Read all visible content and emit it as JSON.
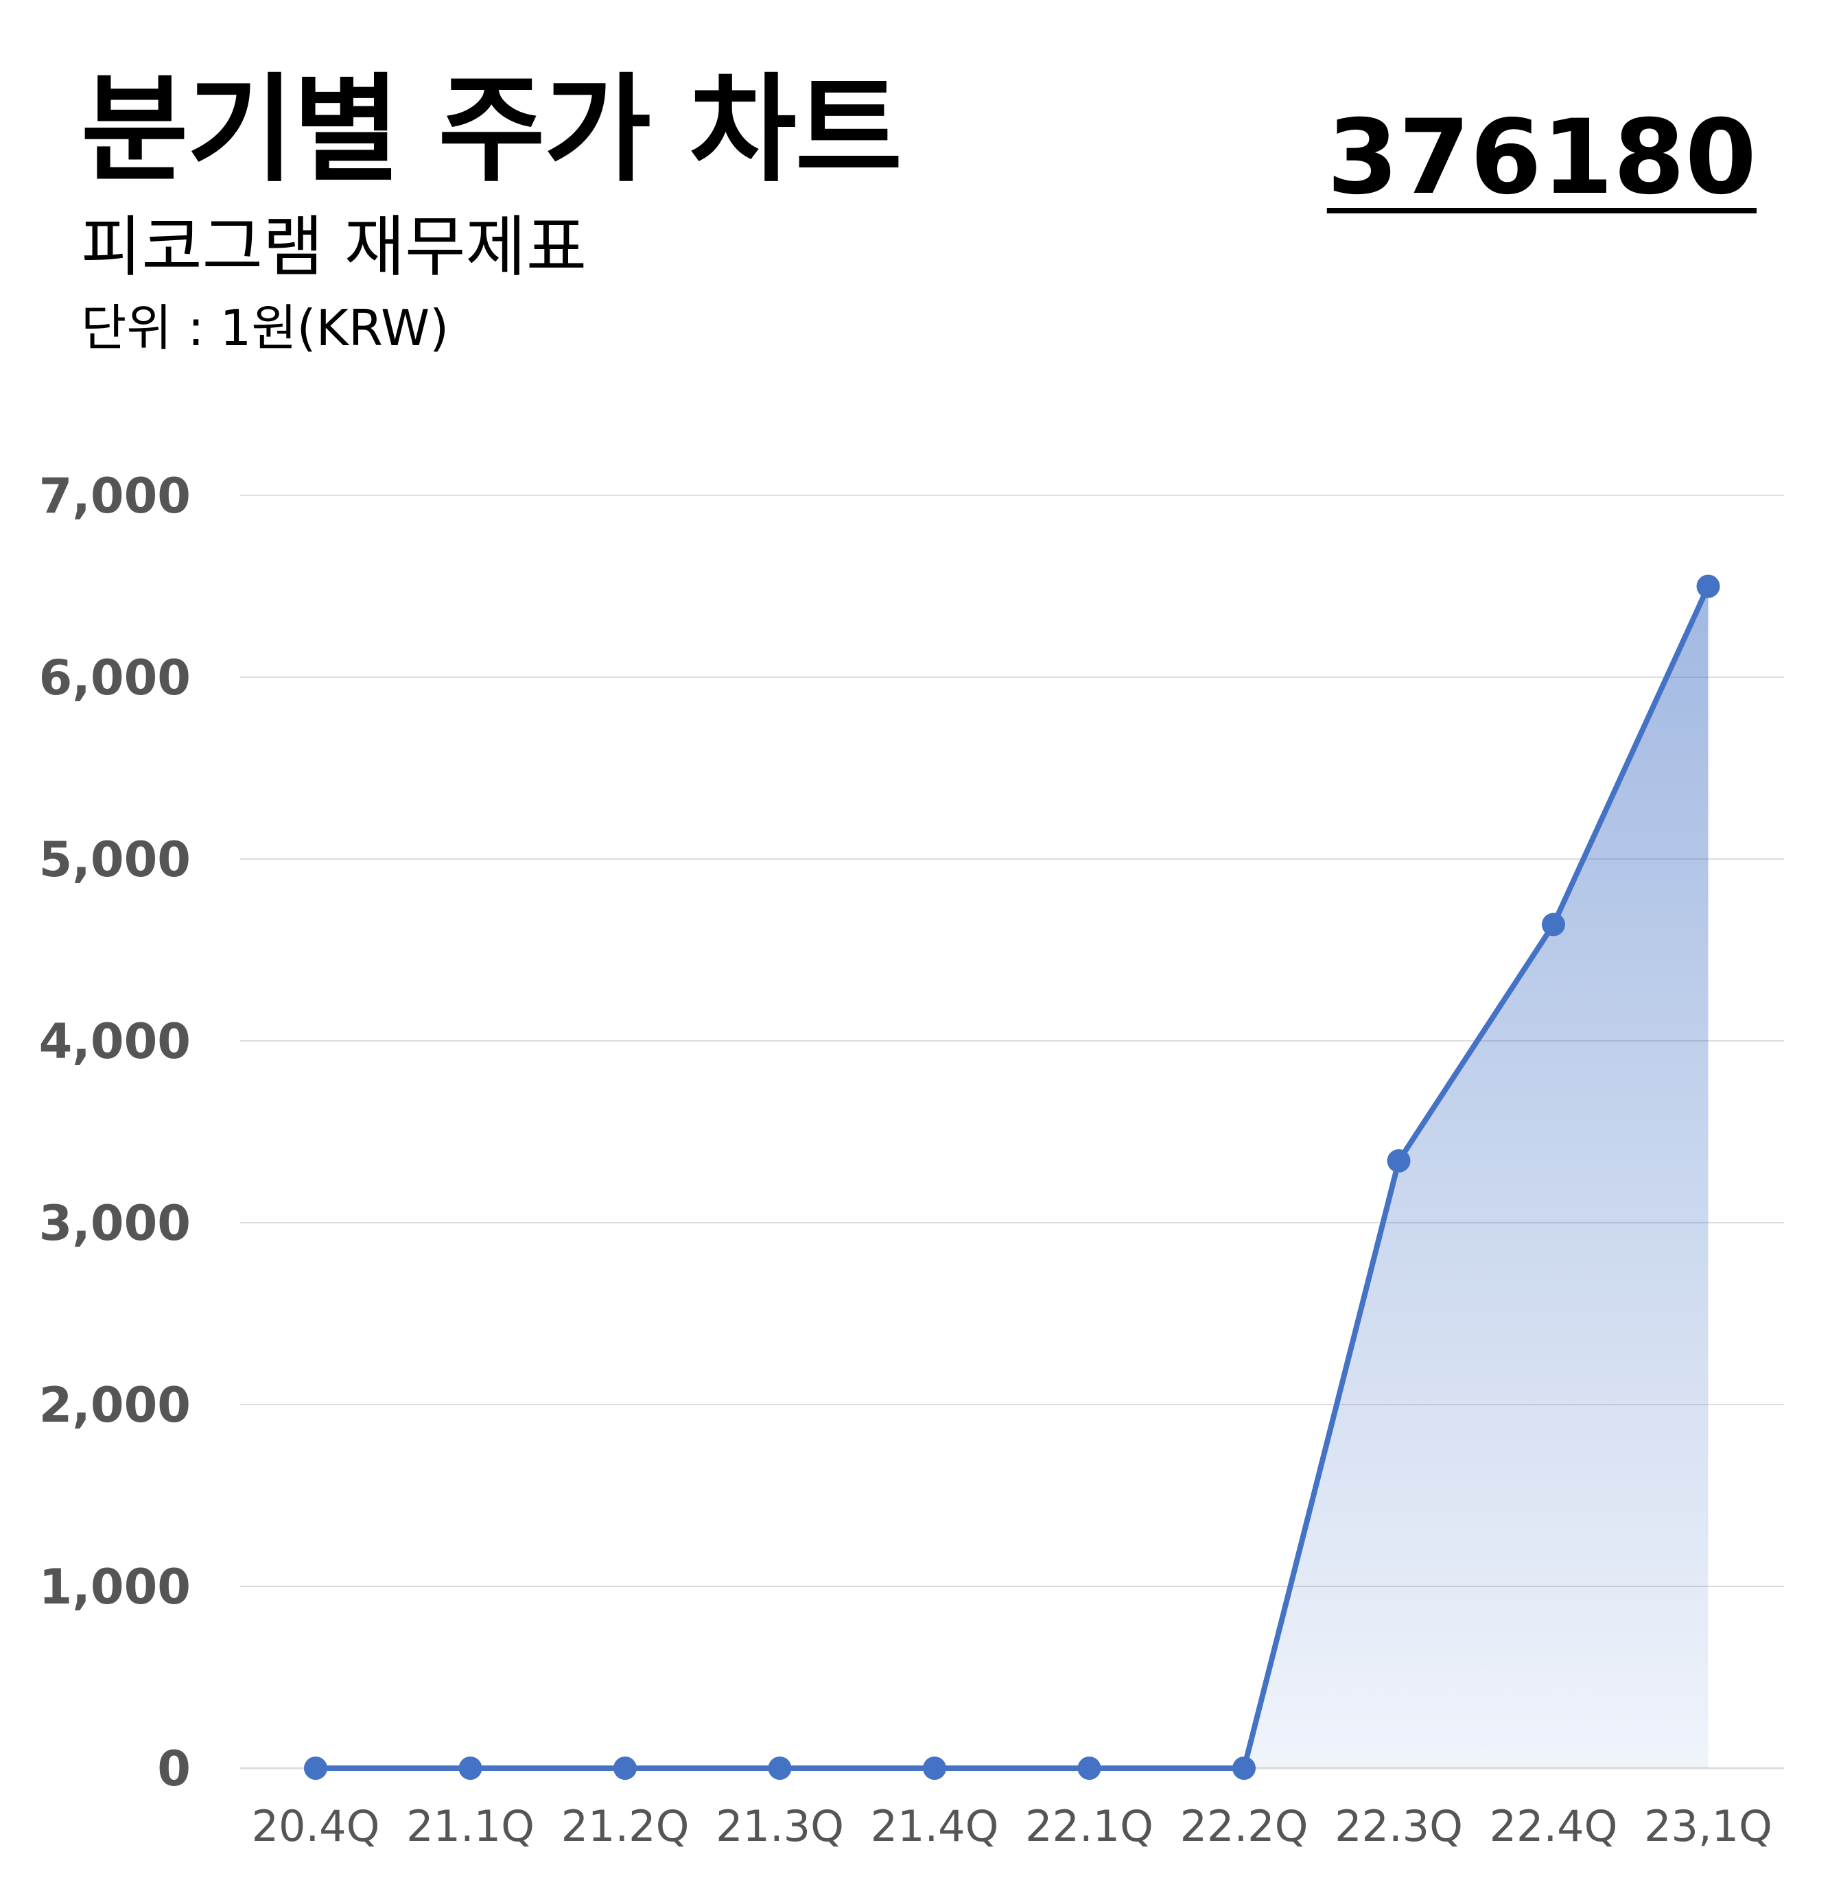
{
  "header": {
    "title": "분기별 주가 차트",
    "subtitle": "피코그램 재무제표",
    "unit": "단위 : 1원(KRW)",
    "code": "376180"
  },
  "colors": {
    "line": "#4472C4",
    "grid": "#DDDDDD",
    "tick_text": "#555555"
  },
  "chart_data": {
    "type": "area",
    "title": "분기별 주가 차트",
    "ylabel": "",
    "xlabel": "",
    "categories": [
      "20.4Q",
      "21.1Q",
      "21.2Q",
      "21.3Q",
      "21.4Q",
      "22.1Q",
      "22.2Q",
      "22.3Q",
      "22.4Q",
      "23,1Q"
    ],
    "values": [
      0,
      0,
      0,
      0,
      0,
      0,
      0,
      3340,
      4640,
      6500
    ],
    "ylim": [
      0,
      7000
    ],
    "yticks": [
      0,
      1000,
      2000,
      3000,
      4000,
      5000,
      6000,
      7000
    ],
    "ytick_labels": [
      "0",
      "1,000",
      "2,000",
      "3,000",
      "4,000",
      "5,000",
      "6,000",
      "7,000"
    ],
    "grid": true,
    "legend": "none"
  }
}
